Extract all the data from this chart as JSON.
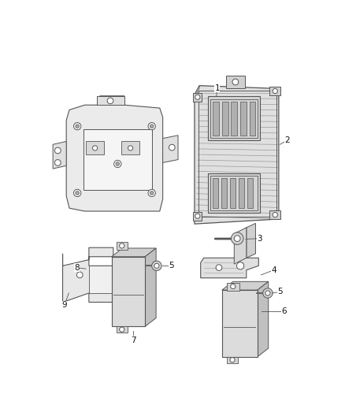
{
  "background_color": "#ffffff",
  "figure_width": 4.38,
  "figure_height": 5.33,
  "dpi": 100,
  "edge_color": "#555555",
  "text_color": "#222222",
  "fill_light": "#e8e8e8",
  "fill_mid": "#d0d0d0",
  "fill_dark": "#b8b8b8"
}
